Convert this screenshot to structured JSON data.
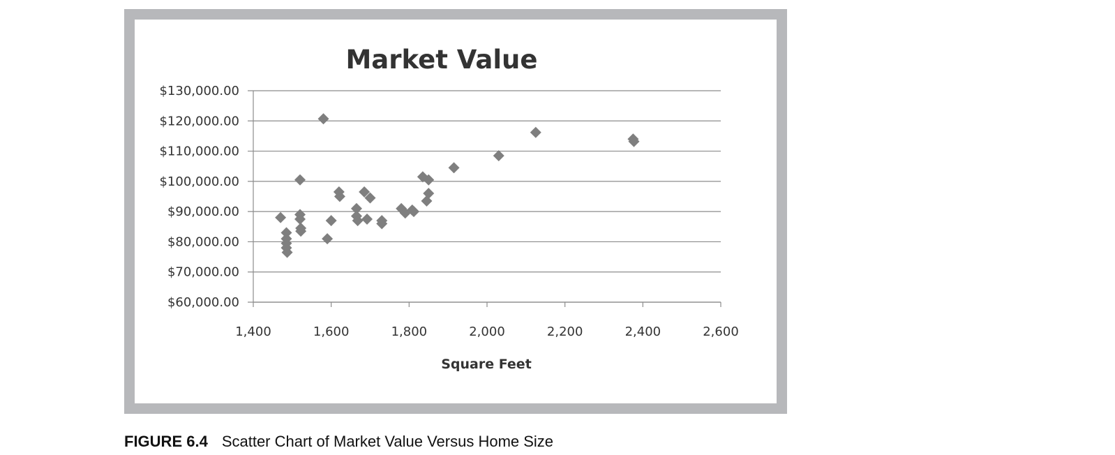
{
  "chart_data": {
    "type": "scatter",
    "title": "Market Value",
    "xlabel": "Square Feet",
    "ylabel": "",
    "xlim": [
      1400,
      2600
    ],
    "ylim": [
      60000,
      130000
    ],
    "x_ticks": [
      1400,
      1600,
      1800,
      2000,
      2200,
      2400,
      2600
    ],
    "x_tick_labels": [
      "1,400",
      "1,600",
      "1,800",
      "2,000",
      "2,200",
      "2,400",
      "2,600"
    ],
    "y_ticks": [
      60000,
      70000,
      80000,
      90000,
      100000,
      110000,
      120000,
      130000
    ],
    "y_tick_labels": [
      "$60,000.00",
      "$70,000.00",
      "$80,000.00",
      "$90,000.00",
      "$100,000.00",
      "$110,000.00",
      "$120,000.00",
      "$130,000.00"
    ],
    "grid": "horizontal",
    "marker": "diamond",
    "marker_color": "#7f7f7f",
    "grid_color": "#8c8c8c",
    "series": [
      {
        "points": [
          [
            1470,
            88000
          ],
          [
            1485,
            83000
          ],
          [
            1485,
            81000
          ],
          [
            1485,
            79500
          ],
          [
            1485,
            78000
          ],
          [
            1487,
            76500
          ],
          [
            1520,
            100500
          ],
          [
            1520,
            89000
          ],
          [
            1520,
            87500
          ],
          [
            1522,
            84500
          ],
          [
            1522,
            83500
          ],
          [
            1580,
            120700
          ],
          [
            1590,
            81000
          ],
          [
            1600,
            87000
          ],
          [
            1620,
            96500
          ],
          [
            1622,
            95000
          ],
          [
            1665,
            91000
          ],
          [
            1665,
            88500
          ],
          [
            1668,
            87000
          ],
          [
            1685,
            96500
          ],
          [
            1692,
            87500
          ],
          [
            1700,
            94500
          ],
          [
            1730,
            87000
          ],
          [
            1730,
            86000
          ],
          [
            1780,
            91000
          ],
          [
            1790,
            89500
          ],
          [
            1808,
            90500
          ],
          [
            1812,
            90000
          ],
          [
            1835,
            101500
          ],
          [
            1850,
            100500
          ],
          [
            1845,
            93500
          ],
          [
            1850,
            96000
          ],
          [
            1915,
            104500
          ],
          [
            2030,
            108500
          ],
          [
            2125,
            116200
          ],
          [
            2375,
            114000
          ],
          [
            2377,
            113200
          ]
        ]
      }
    ]
  },
  "caption": {
    "label": "FIGURE 6.4",
    "text": "Scatter Chart of Market Value Versus Home Size"
  }
}
